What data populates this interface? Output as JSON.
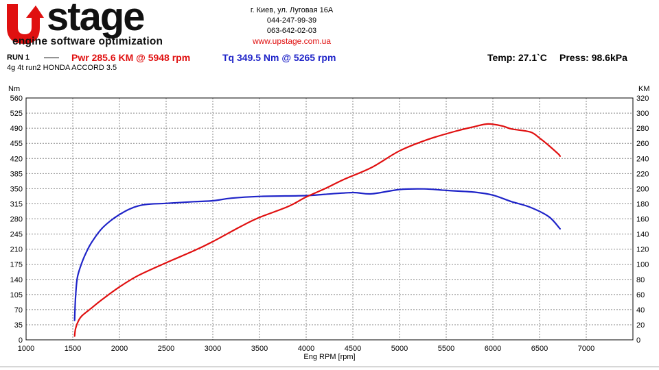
{
  "logo": {
    "brand": "Upstage",
    "word": "stage",
    "tagline": "engine software optimization"
  },
  "contact": {
    "address": "г. Киев, ул. Луговая 16А",
    "phone1": "044-247-99-39",
    "phone2": "063-642-02-03",
    "website": "www.upstage.com.ua"
  },
  "header": {
    "run": "RUN 1",
    "power": "Pwr  285.6 KM @ 5948 rpm",
    "torque": "Tq 349.5 Nm @ 5265 rpm",
    "temp": "Temp: 27.1`C",
    "press": "Press: 98.6kPa",
    "subtitle": "4g 4t run2 HONDA ACCORD 3.5"
  },
  "colors": {
    "power": "#e01010",
    "torque": "#1f24c8",
    "grid": "#888888"
  },
  "chart_data": {
    "type": "line",
    "xlabel": "Eng RPM [rpm]",
    "ylabel": "Nm",
    "y2label": "KM",
    "xlim": [
      1000,
      7500
    ],
    "ylim": [
      0,
      560
    ],
    "y2lim": [
      0,
      320
    ],
    "x_ticks": [
      1000,
      1500,
      2000,
      2500,
      3000,
      3500,
      4000,
      4500,
      5000,
      5500,
      6000,
      6500,
      7000
    ],
    "y_ticks": [
      0,
      35,
      70,
      105,
      140,
      175,
      210,
      245,
      280,
      315,
      350,
      385,
      420,
      455,
      490,
      525,
      560
    ],
    "y2_ticks": [
      0,
      20,
      40,
      60,
      80,
      100,
      120,
      140,
      160,
      180,
      200,
      220,
      240,
      260,
      280,
      300,
      320
    ],
    "grid": true,
    "series": [
      {
        "axis": "left",
        "color": "#1f24c8",
        "x": [
          1520,
          1530,
          1550,
          1600,
          1650,
          1700,
          1800,
          1900,
          2000,
          2100,
          2200,
          2300,
          2500,
          2800,
          3000,
          3200,
          3500,
          4000,
          4200,
          4500,
          4700,
          5000,
          5265,
          5500,
          5800,
          6000,
          6200,
          6400,
          6600,
          6720
        ],
        "values": [
          45,
          100,
          145,
          180,
          205,
          225,
          255,
          275,
          290,
          302,
          310,
          314,
          316,
          320,
          322,
          328,
          332,
          334,
          337,
          341,
          338,
          348,
          349.5,
          346,
          342,
          335,
          320,
          307,
          285,
          257
        ]
      },
      {
        "axis": "right",
        "color": "#e01010",
        "x": [
          1520,
          1530,
          1560,
          1600,
          1700,
          1800,
          2000,
          2200,
          2500,
          2800,
          3000,
          3300,
          3500,
          3800,
          4000,
          4200,
          4400,
          4700,
          5000,
          5300,
          5600,
          5800,
          5948,
          6100,
          6200,
          6400,
          6500,
          6600,
          6700,
          6720
        ],
        "values": [
          5,
          15,
          25,
          32,
          42,
          52,
          70,
          85,
          102,
          118,
          130,
          150,
          162,
          176,
          189,
          200,
          212,
          228,
          250,
          265,
          276,
          282,
          285.6,
          283,
          279,
          275,
          267,
          257,
          246,
          243
        ]
      }
    ]
  }
}
